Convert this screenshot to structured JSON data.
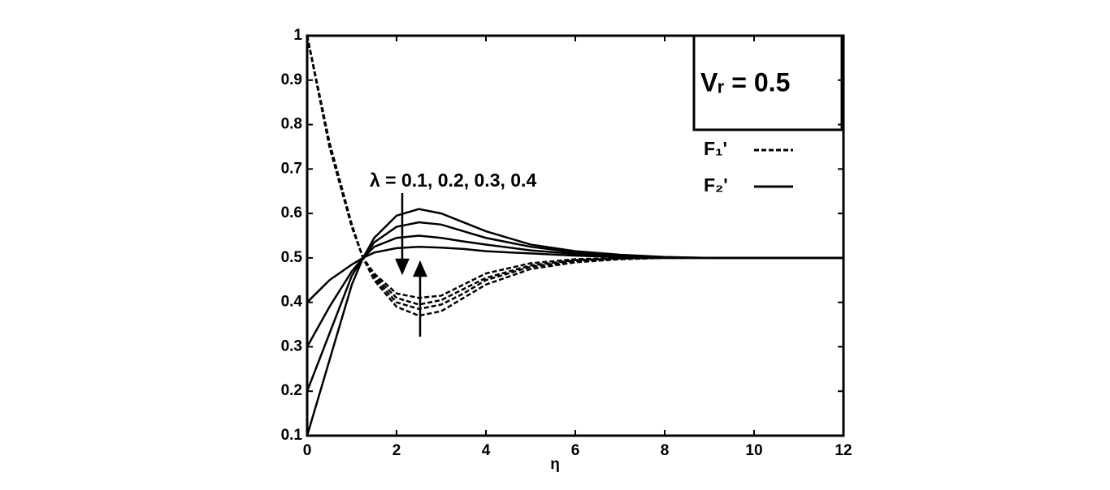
{
  "chart_data": {
    "type": "line",
    "x_label": "η",
    "annotation": "λ = 0.1, 0.2, 0.3, 0.4",
    "box_label": "Vᵣ = 0.5",
    "x": [
      0,
      0.5,
      1,
      1.25,
      1.5,
      2,
      2.5,
      3,
      3.5,
      4,
      5,
      6,
      7,
      8,
      9,
      10,
      12
    ],
    "series": [
      {
        "name": "F₁'",
        "color": "#000000",
        "dashed": true,
        "curves": [
          [
            1,
            0.75,
            0.57,
            0.5,
            0.45,
            0.39,
            0.37,
            0.38,
            0.41,
            0.44,
            0.475,
            0.49,
            0.497,
            0.5,
            0.5,
            0.5,
            0.5
          ],
          [
            1,
            0.75,
            0.57,
            0.5,
            0.455,
            0.4,
            0.385,
            0.395,
            0.42,
            0.45,
            0.48,
            0.493,
            0.498,
            0.5,
            0.5,
            0.5,
            0.5
          ],
          [
            1,
            0.75,
            0.57,
            0.5,
            0.46,
            0.41,
            0.395,
            0.405,
            0.43,
            0.455,
            0.483,
            0.495,
            0.499,
            0.5,
            0.5,
            0.5,
            0.5
          ],
          [
            1,
            0.76,
            0.575,
            0.5,
            0.465,
            0.42,
            0.41,
            0.415,
            0.44,
            0.465,
            0.488,
            0.497,
            0.5,
            0.5,
            0.5,
            0.5,
            0.5
          ]
        ]
      },
      {
        "name": "F₂'",
        "color": "#000000",
        "dashed": false,
        "curves": [
          [
            0.1,
            0.27,
            0.44,
            0.5,
            0.545,
            0.595,
            0.61,
            0.6,
            0.58,
            0.56,
            0.53,
            0.515,
            0.507,
            0.502,
            0.5,
            0.5,
            0.5
          ],
          [
            0.2,
            0.33,
            0.46,
            0.5,
            0.535,
            0.57,
            0.58,
            0.575,
            0.56,
            0.545,
            0.525,
            0.512,
            0.505,
            0.501,
            0.5,
            0.5,
            0.5
          ],
          [
            0.3,
            0.39,
            0.47,
            0.5,
            0.525,
            0.545,
            0.55,
            0.545,
            0.537,
            0.53,
            0.517,
            0.509,
            0.503,
            0.5,
            0.5,
            0.5,
            0.5
          ],
          [
            0.4,
            0.45,
            0.485,
            0.5,
            0.512,
            0.522,
            0.525,
            0.523,
            0.52,
            0.515,
            0.51,
            0.505,
            0.502,
            0.5,
            0.5,
            0.5,
            0.5
          ]
        ]
      }
    ],
    "xlim": [
      0,
      12
    ],
    "xticks": [
      0,
      2,
      4,
      6,
      8,
      10,
      12
    ],
    "ylim": [
      0.1,
      1
    ],
    "yticks": [
      0.1,
      0.2,
      0.3,
      0.4,
      0.5,
      0.6,
      0.7,
      0.8,
      0.9,
      1
    ]
  }
}
